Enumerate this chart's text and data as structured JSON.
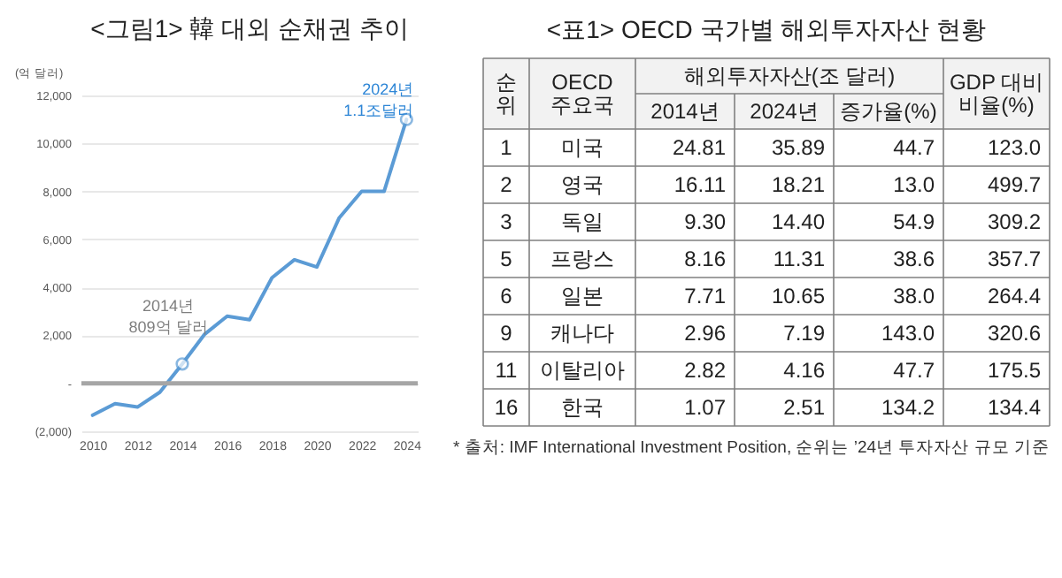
{
  "chart_data": [
    {
      "type": "line",
      "title": "<그림1> 韓 대외 순채권 추이",
      "ylabel": "(억 달러)",
      "x": [
        2010,
        2011,
        2012,
        2013,
        2014,
        2015,
        2016,
        2017,
        2018,
        2019,
        2020,
        2021,
        2022,
        2023,
        2024
      ],
      "series": [
        {
          "color": "#5b9bd5",
          "values": [
            -1330,
            -850,
            -990,
            -370,
            809,
            2050,
            2800,
            2650,
            4400,
            5150,
            4850,
            6900,
            8000,
            8000,
            11000
          ]
        }
      ],
      "xlim": [
        2009.5,
        2024.5
      ],
      "xticks": [
        2010,
        2012,
        2014,
        2016,
        2018,
        2020,
        2022,
        2024
      ],
      "ylim": [
        -2000,
        12000
      ],
      "yticks": [
        {
          "value": -2000,
          "label": "(2,000)"
        },
        {
          "value": 0,
          "label": "-"
        },
        {
          "value": 2000,
          "label": "2,000"
        },
        {
          "value": 4000,
          "label": "4,000"
        },
        {
          "value": 6000,
          "label": "6,000"
        },
        {
          "value": 8000,
          "label": "8,000"
        },
        {
          "value": 10000,
          "label": "10,000"
        },
        {
          "value": 12000,
          "label": "12,000"
        }
      ],
      "grid": "y",
      "marker": "none",
      "line_style": "solid",
      "ref_lines": [
        {
          "axis": "y",
          "value": 0,
          "color": "#a6a6a6"
        }
      ],
      "annotations": [
        {
          "text": "2014년\n809억 달러",
          "x": 2014,
          "y": 809
        },
        {
          "text": "2024년\n1.1조달러",
          "x": 2024,
          "y": 11000
        }
      ]
    },
    {
      "type": "other",
      "title": "<표1> OECD 국가별 해외투자자산 현황",
      "xlabel": "OECD 주요국",
      "legend_title": "해외투자자산(조 달러)",
      "categories": [
        "미국",
        "영국",
        "독일",
        "프랑스",
        "일본",
        "캐나다",
        "이탈리아",
        "한국"
      ],
      "series": [
        {
          "name": "순위",
          "values": [
            1,
            2,
            3,
            5,
            6,
            9,
            11,
            16
          ],
          "value_labels": [
            "1",
            "2",
            "3",
            "5",
            "6",
            "9",
            "11",
            "16"
          ]
        },
        {
          "name": "2014년",
          "values": [
            24.81,
            16.11,
            9.3,
            8.16,
            7.71,
            2.96,
            2.82,
            1.07
          ],
          "value_labels": [
            "24.81",
            "16.11",
            "9.30",
            "8.16",
            "7.71",
            "2.96",
            "2.82",
            "1.07"
          ]
        },
        {
          "name": "2024년",
          "values": [
            35.89,
            18.21,
            14.4,
            11.31,
            10.65,
            7.19,
            4.16,
            2.51
          ],
          "value_labels": [
            "35.89",
            "18.21",
            "14.40",
            "11.31",
            "10.65",
            "7.19",
            "4.16",
            "2.51"
          ]
        },
        {
          "name": "증가율(%)",
          "values": [
            44.7,
            13,
            54.9,
            38.6,
            38,
            143,
            47.7,
            134.2
          ],
          "value_labels": [
            "44.7",
            "13.0",
            "54.9",
            "38.6",
            "38.0",
            "143.0",
            "47.7",
            "134.2"
          ]
        },
        {
          "name": "GDP 대비 비율(%)",
          "values": [
            123,
            499.7,
            309.2,
            357.7,
            264.4,
            320.6,
            175.5,
            134.4
          ],
          "value_labels": [
            "123.0",
            "499.7",
            "309.2",
            "357.7",
            "264.4",
            "320.6",
            "175.5",
            "134.4"
          ]
        }
      ],
      "annotations": [
        "* 출처: IMF International Investment Position, 순위는 ’24년 투자자산 규모 기준"
      ]
    }
  ]
}
